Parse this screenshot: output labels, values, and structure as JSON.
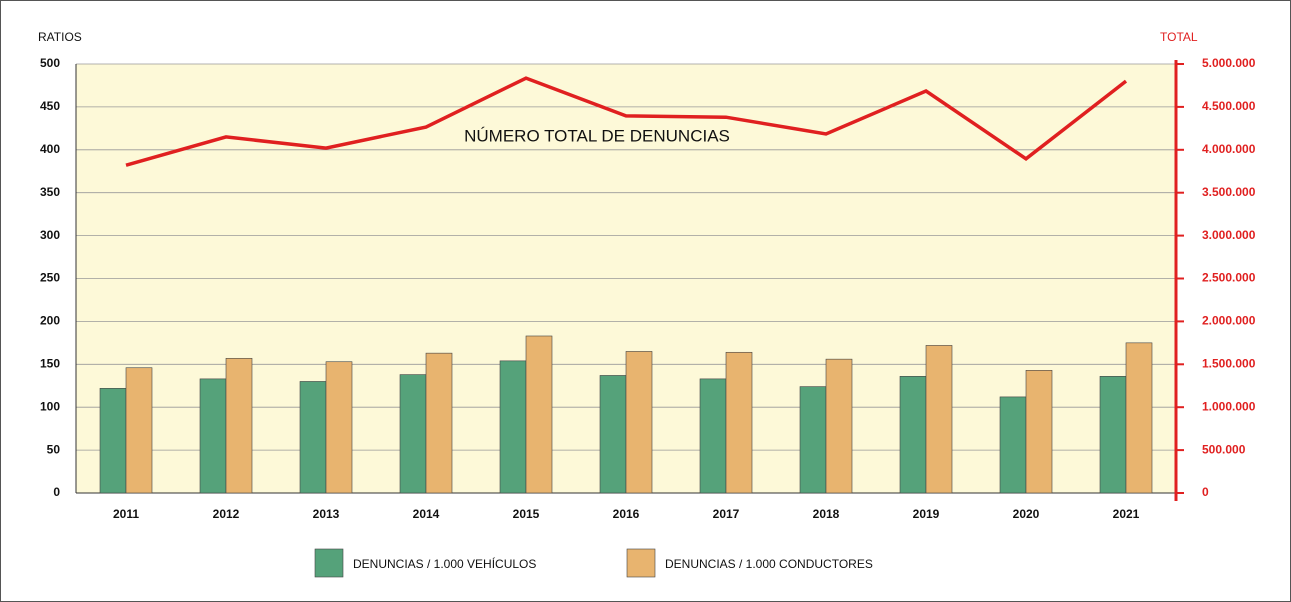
{
  "chart_data": {
    "type": "bar",
    "ylabel": "RATIOS",
    "y2label": "TOTAL",
    "annotation": "NÚMERO TOTAL DE DENUNCIAS",
    "categories": [
      "2011",
      "2012",
      "2013",
      "2014",
      "2015",
      "2016",
      "2017",
      "2018",
      "2019",
      "2020",
      "2021"
    ],
    "series": [
      {
        "name": "DENUNCIAS / 1.000 VEHÍCULOS",
        "color": "#55a27a",
        "values": [
          122,
          133,
          130,
          138,
          154,
          137,
          133,
          124,
          136,
          112,
          136
        ]
      },
      {
        "name": "DENUNCIAS / 1.000 CONDUCTORES",
        "color": "#e8b46f",
        "values": [
          146,
          157,
          153,
          163,
          183,
          165,
          164,
          156,
          172,
          143,
          175
        ]
      },
      {
        "type": "line",
        "axis": "y2",
        "color": "#e02020",
        "values": [
          3820000,
          4150000,
          4020000,
          4265000,
          4835000,
          4395000,
          4380000,
          4185000,
          4685000,
          3895000,
          4800000
        ]
      }
    ],
    "ylim": [
      0,
      500
    ],
    "yticks": [
      0,
      50,
      100,
      150,
      200,
      250,
      300,
      350,
      400,
      450,
      500
    ],
    "y2lim": [
      0,
      5000000
    ],
    "y2ticks": [
      0,
      {
        "value": 500000,
        "label": "500.000"
      },
      {
        "value": 1000000,
        "label": "1.000.000"
      },
      {
        "value": 1500000,
        "label": "1.500.000"
      },
      {
        "value": 2000000,
        "label": "2.000.000"
      },
      {
        "value": 2500000,
        "label": "2.500.000"
      },
      {
        "value": 3000000,
        "label": "3.000.000"
      },
      {
        "value": 3500000,
        "label": "3.500.000"
      },
      {
        "value": 4000000,
        "label": "4.000.000"
      },
      {
        "value": 4500000,
        "label": "4.500.000"
      },
      {
        "value": 5000000,
        "label": "5.000.000"
      }
    ],
    "grid": true
  }
}
